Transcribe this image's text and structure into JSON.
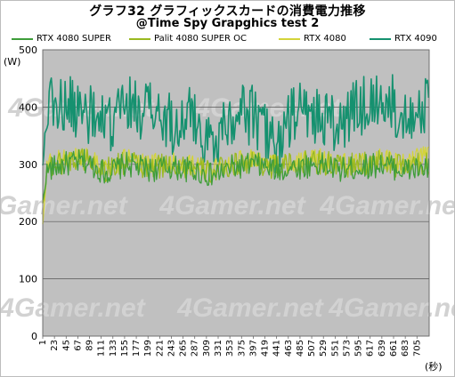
{
  "chart_data": {
    "type": "line",
    "title": "グラフ32 グラフィックスカードの消費電力推移",
    "subtitle": "@Time Spy Grapghics test 2",
    "ylabel": "(W)",
    "xlabel": "(秒)",
    "ylim": [
      0,
      500
    ],
    "yticks": [
      0,
      100,
      200,
      300,
      400,
      500
    ],
    "xlim": [
      1,
      728
    ],
    "xticks": [
      1,
      23,
      45,
      67,
      89,
      111,
      133,
      155,
      177,
      199,
      221,
      243,
      265,
      287,
      309,
      331,
      353,
      375,
      397,
      419,
      441,
      463,
      485,
      507,
      529,
      551,
      573,
      595,
      617,
      639,
      661,
      683,
      705
    ],
    "grid": true,
    "legend_position": "top",
    "watermark": "4Gamer.net",
    "series": [
      {
        "name": "RTX 4080 SUPER",
        "color": "#3e9d3a",
        "x": [
          1,
          10,
          40,
          80,
          120,
          160,
          200,
          240,
          280,
          320,
          360,
          400,
          440,
          480,
          520,
          560,
          600,
          640,
          680,
          728
        ],
        "values": [
          235,
          290,
          300,
          305,
          285,
          300,
          290,
          295,
          290,
          280,
          295,
          300,
          290,
          295,
          300,
          290,
          295,
          300,
          290,
          292
        ]
      },
      {
        "name": "Palit 4080 SUPER OC",
        "color": "#9ab920",
        "x": [
          1,
          10,
          40,
          80,
          120,
          160,
          200,
          240,
          280,
          320,
          360,
          400,
          440,
          480,
          520,
          560,
          600,
          640,
          680,
          728
        ],
        "values": [
          230,
          295,
          305,
          310,
          290,
          305,
          292,
          300,
          295,
          285,
          300,
          305,
          295,
          300,
          305,
          295,
          300,
          305,
          295,
          300
        ]
      },
      {
        "name": "RTX 4080",
        "color": "#d4d43a",
        "x": [
          1,
          10,
          40,
          80,
          120,
          160,
          200,
          240,
          280,
          320,
          360,
          400,
          440,
          480,
          520,
          560,
          600,
          640,
          680,
          728
        ],
        "values": [
          195,
          300,
          310,
          315,
          295,
          310,
          300,
          305,
          300,
          290,
          305,
          310,
          300,
          305,
          310,
          300,
          305,
          310,
          300,
          320
        ]
      },
      {
        "name": "RTX 4090",
        "color": "#15916f",
        "x": [
          1,
          10,
          40,
          80,
          120,
          160,
          200,
          240,
          280,
          320,
          360,
          400,
          440,
          480,
          520,
          560,
          600,
          640,
          680,
          728
        ],
        "values": [
          300,
          410,
          400,
          395,
          360,
          405,
          395,
          370,
          385,
          335,
          395,
          385,
          330,
          395,
          385,
          365,
          405,
          410,
          395,
          400
        ]
      }
    ]
  }
}
